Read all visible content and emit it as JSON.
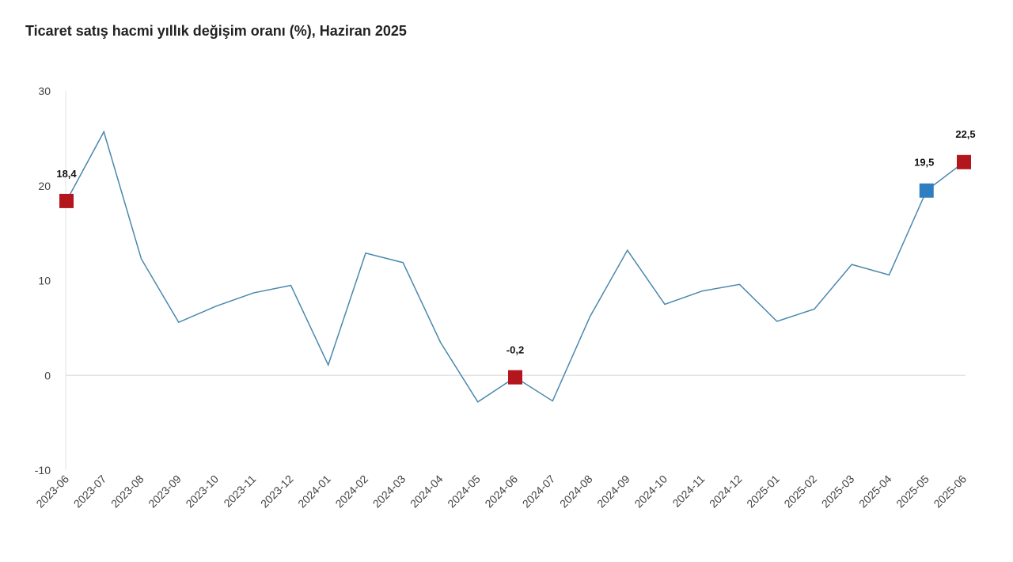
{
  "chart_data": {
    "type": "line",
    "title": "Ticaret satış hacmi yıllık değişim oranı (%), Haziran 2025",
    "xlabel": "",
    "ylabel": "",
    "ylim": [
      -10,
      30
    ],
    "yticks": [
      30,
      20,
      10,
      0,
      -10
    ],
    "grid": "zero line only",
    "line_color": "#4a88ad",
    "categories": [
      "2023-06",
      "2023-07",
      "2023-08",
      "2023-09",
      "2023-10",
      "2023-11",
      "2023-12",
      "2024-01",
      "2024-02",
      "2024-03",
      "2024-04",
      "2024-05",
      "2024-06",
      "2024-07",
      "2024-08",
      "2024-09",
      "2024-10",
      "2024-11",
      "2024-12",
      "2025-01",
      "2025-02",
      "2025-03",
      "2025-04",
      "2025-05",
      "2025-06"
    ],
    "values": [
      18.4,
      25.7,
      12.3,
      5.6,
      7.3,
      8.7,
      9.5,
      1.1,
      12.9,
      11.9,
      3.5,
      -2.8,
      -0.2,
      -2.7,
      6.2,
      13.2,
      7.5,
      8.9,
      9.6,
      5.7,
      7.0,
      11.7,
      10.6,
      19.5,
      22.5
    ],
    "highlights": [
      {
        "category": "2023-06",
        "label": "18,4",
        "color": "#b3161d"
      },
      {
        "category": "2024-06",
        "label": "-0,2",
        "color": "#b3161d"
      },
      {
        "category": "2025-05",
        "label": "19,5",
        "color": "#2f7fc0"
      },
      {
        "category": "2025-06",
        "label": "22,5",
        "color": "#b3161d"
      }
    ]
  }
}
